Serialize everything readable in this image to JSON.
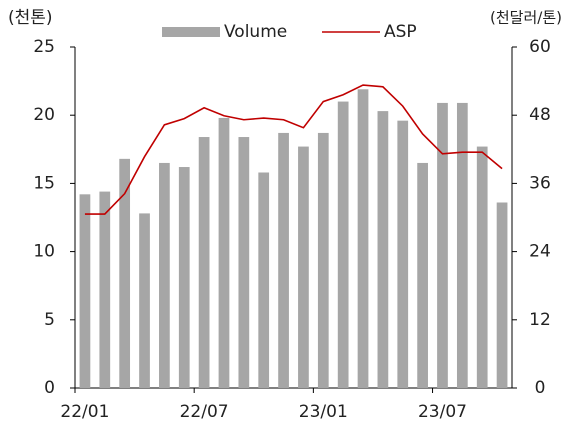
{
  "chart_data": {
    "type": "bar_line",
    "y_label": "(천톤)",
    "y2_label": "(천달러/톤)",
    "categories": [
      "22/01",
      null,
      null,
      null,
      null,
      null,
      "22/07",
      null,
      null,
      null,
      null,
      null,
      "23/01",
      null,
      null,
      null,
      null,
      null,
      "23/07",
      null,
      null,
      null
    ],
    "series": [
      {
        "name": "Volume",
        "type": "bar",
        "color": "#a6a6a6",
        "values": [
          14.2,
          14.4,
          16.8,
          12.8,
          16.5,
          16.2,
          18.4,
          19.8,
          18.4,
          15.8,
          18.7,
          17.7,
          18.7,
          21.0,
          21.9,
          20.3,
          19.6,
          16.5,
          20.9,
          20.9,
          17.7,
          13.6
        ]
      },
      {
        "name": "ASP",
        "type": "line",
        "axis": "y2",
        "color": "#c00000",
        "values": [
          30.6,
          30.6,
          34.2,
          40.7,
          46.3,
          47.4,
          49.3,
          47.9,
          47.2,
          47.5,
          47.2,
          45.8,
          50.4,
          51.6,
          53.3,
          53.0,
          49.6,
          44.7,
          41.2,
          41.5,
          41.5,
          38.6
        ]
      }
    ],
    "ylim": [
      0,
      25
    ],
    "yticks": [
      0,
      5,
      10,
      15,
      20,
      25
    ],
    "y2lim": [
      0,
      60
    ],
    "y2ticks": [
      0,
      12,
      24,
      36,
      48,
      60
    ],
    "grid": false,
    "legend": "top"
  }
}
